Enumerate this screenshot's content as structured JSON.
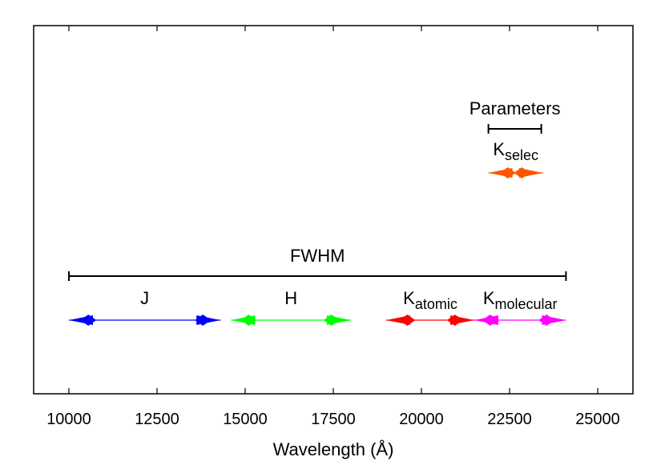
{
  "chart_data": {
    "type": "range",
    "xlabel": "Wavelength (Å)",
    "xlim": [
      9000,
      26000
    ],
    "x_ticks": [
      10000,
      12500,
      15000,
      17500,
      20000,
      22500,
      25000
    ],
    "x_tick_labels": [
      "10000",
      "12500",
      "15000",
      "17500",
      "20000",
      "22500",
      "25000"
    ],
    "grid": false,
    "brackets": [
      {
        "label": "FWHM",
        "x_start": 10000,
        "x_end": 24100,
        "level": "lower"
      },
      {
        "label": "Parameters",
        "x_start": 21900,
        "x_end": 23400,
        "level": "upper"
      }
    ],
    "bands": [
      {
        "label": "J",
        "subscript": "",
        "x_start": 10000,
        "x_end": 14300,
        "marker_left": 10550,
        "marker_right": 13800,
        "color": "#0000ff",
        "level": "lower"
      },
      {
        "label": "H",
        "subscript": "",
        "x_start": 14600,
        "x_end": 18000,
        "marker_left": 15100,
        "marker_right": 17450,
        "color": "#00ff00",
        "level": "lower"
      },
      {
        "label": "K",
        "subscript": "atomic",
        "x_start": 19000,
        "x_end": 21500,
        "marker_left": 19600,
        "marker_right": 20950,
        "color": "#ff0000",
        "level": "lower"
      },
      {
        "label": "K",
        "subscript": "molecular",
        "x_start": 21500,
        "x_end": 24100,
        "marker_left": 21950,
        "marker_right": 23550,
        "color": "#ff00ff",
        "level": "lower"
      },
      {
        "label": "K",
        "subscript": "selec",
        "x_start": 21900,
        "x_end": 23450,
        "marker_left": 22450,
        "marker_right": 22850,
        "color": "#ff5500",
        "level": "upper"
      }
    ]
  }
}
